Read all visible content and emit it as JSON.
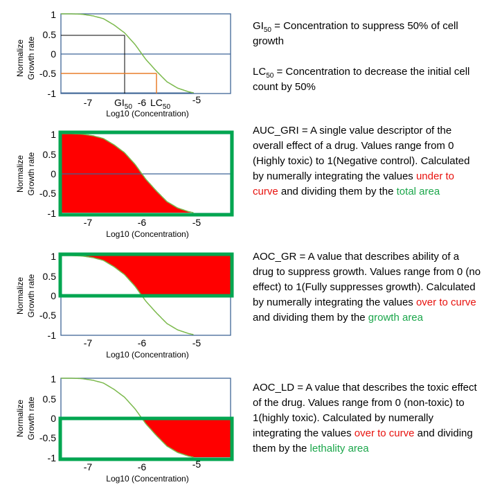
{
  "colors": {
    "curve": "#7bb94c",
    "frame": "#3e6596",
    "fill_red": "#ff0000",
    "box_green": "#00a650",
    "orange": "#e87d2a"
  },
  "common": {
    "ylabel_line1": "Normalize",
    "ylabel_line2": "Growth rate",
    "xlabel": "Log10 (Concentration)"
  },
  "chart_data": [
    {
      "type": "line",
      "title": "",
      "xlabel": "Log10 (Concentration)",
      "ylabel": "Normalize Growth rate",
      "xlim": [
        -7.5,
        -4.3
      ],
      "ylim": [
        -1,
        1
      ],
      "yticks": [
        "1",
        "0.5",
        "0",
        "-0.5",
        "-1"
      ],
      "xticks": [
        "-7",
        "GI50",
        "-6",
        "LC50",
        "-5"
      ],
      "x": [
        -7.5,
        -7.3,
        -7.1,
        -6.9,
        -6.7,
        -6.5,
        -6.3,
        -6.1,
        -5.9,
        -5.7,
        -5.5,
        -5.3,
        -5.1,
        -5.0
      ],
      "y": [
        1.0,
        1.0,
        0.99,
        0.95,
        0.88,
        0.72,
        0.52,
        0.22,
        -0.15,
        -0.45,
        -0.72,
        -0.88,
        -0.97,
        -1.0
      ],
      "annotations": [
        {
          "label": "GI50",
          "x": -6.3,
          "y": 0.5
        },
        {
          "label": "LC50",
          "x": -5.82,
          "y": -0.5
        }
      ]
    },
    {
      "type": "area",
      "title": "",
      "xlabel": "Log10 (Concentration)",
      "ylabel": "Normalize Growth rate",
      "xlim": [
        -7.5,
        -4.3
      ],
      "ylim": [
        -1,
        1
      ],
      "yticks": [
        "1",
        "0.5",
        "0",
        "-0.5",
        "-1"
      ],
      "xticks": [
        "-7",
        "-6",
        "-5"
      ],
      "shaded": "under curve",
      "box": "total area"
    },
    {
      "type": "area",
      "title": "",
      "xlabel": "Log10 (Concentration)",
      "ylabel": "Normalize Growth rate",
      "xlim": [
        -7.5,
        -4.3
      ],
      "ylim": [
        -1,
        1
      ],
      "yticks": [
        "1",
        "0.5",
        "0",
        "-0.5",
        "-1"
      ],
      "xticks": [
        "-7",
        "-6",
        "-5"
      ],
      "shaded": "over curve, above 0",
      "box": "growth area"
    },
    {
      "type": "area",
      "title": "",
      "xlabel": "Log10 (Concentration)",
      "ylabel": "Normalize Growth rate",
      "xlim": [
        -7.5,
        -4.3
      ],
      "ylim": [
        -1,
        1
      ],
      "yticks": [
        "1",
        "0.5",
        "0",
        "-0.5",
        "-1"
      ],
      "xticks": [
        "-7",
        "-6",
        "-5"
      ],
      "shaded": "over curve, below 0",
      "box": "lethality area"
    }
  ],
  "desc1": {
    "gi_a": "GI",
    "gi_sub": "50",
    "gi_b": " = Concentration to suppress 50% of cell growth",
    "lc_a": "LC",
    "lc_sub": "50",
    "lc_b": " = Concentration to decrease the initial cell count by 50%"
  },
  "desc2": {
    "a": "AUC_GRI = A single value descriptor of the overall effect of a drug. Values range from 0 (Highly toxic) to 1(Negative control). Calculated by numerally integrating the values ",
    "red": "under to curve",
    "b": " and dividing them by the ",
    "green": "total area"
  },
  "desc3": {
    "a": "AOC_GR = A value that describes ability of a drug to suppress growth. Values range from 0 (no effect) to 1(Fully suppresses growth). Calculated by numerally integrating the values ",
    "red": "over to curve",
    "b": " and dividing them by the ",
    "green": "growth area"
  },
  "desc4": {
    "a": "AOC_LD = A value that describes the toxic effect of the drug. Values range from 0 (non-toxic) to 1(highly toxic). Calculated by numerally integrating the values ",
    "red": "over to curve",
    "b": " and dividing them by the ",
    "green": "lethality area"
  },
  "gi50": {
    "a": "GI",
    "sub": "50"
  },
  "lc50": {
    "a": "LC",
    "sub": "50"
  }
}
